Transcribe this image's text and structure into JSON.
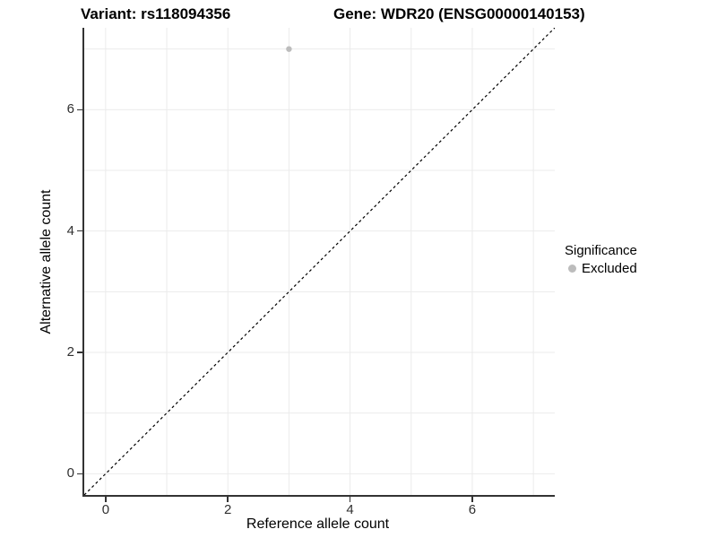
{
  "header": {
    "left_title": "Variant: rs118094356",
    "right_title": "Gene: WDR20 (ENSG00000140153)"
  },
  "chart_data": {
    "type": "scatter",
    "title_left": "Variant: rs118094356",
    "title_right": "Gene: WDR20 (ENSG00000140153)",
    "xlabel": "Reference allele count",
    "ylabel": "Alternative allele count",
    "xlim": [
      -0.35,
      7.35
    ],
    "ylim": [
      -0.35,
      7.35
    ],
    "xticks": [
      0,
      2,
      4,
      6
    ],
    "yticks": [
      0,
      2,
      4,
      6
    ],
    "grid_interval": 1,
    "grid_on": true,
    "points": [
      {
        "x": 3,
        "y": 7,
        "series": "Excluded"
      }
    ],
    "reference_line": {
      "kind": "diagonal",
      "slope": 1,
      "intercept": 0,
      "style": "dashed",
      "color": "#000000"
    },
    "legend": {
      "title": "Significance",
      "position": "right",
      "items": [
        {
          "label": "Excluded",
          "color": "#bcbcbc"
        }
      ]
    },
    "colors": {
      "point": "#bcbcbc",
      "grid": "#ebebeb",
      "axis": "#333333",
      "tick_text": "#303030"
    }
  }
}
